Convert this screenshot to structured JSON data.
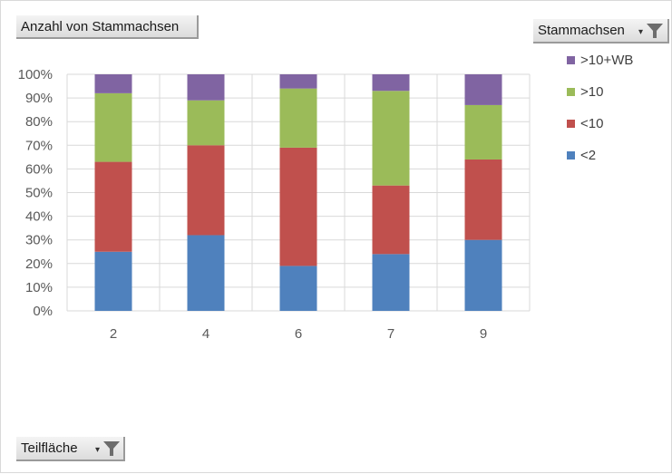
{
  "value_field": {
    "label": "Anzahl von Stammachsen"
  },
  "legend_field": {
    "label": "Stammachsen"
  },
  "axis_field": {
    "label": "Teilfläche"
  },
  "chart_data": {
    "type": "bar",
    "stacked": true,
    "percent": true,
    "categories": [
      "2",
      "4",
      "6",
      "7",
      "9"
    ],
    "series": [
      {
        "name": "<2",
        "color": "#4f81bd",
        "values": [
          25,
          32,
          19,
          24,
          30
        ]
      },
      {
        "name": "<10",
        "color": "#c0504d",
        "values": [
          38,
          38,
          50,
          29,
          34
        ]
      },
      {
        "name": ">10",
        "color": "#9bbb59",
        "values": [
          29,
          19,
          25,
          40,
          23
        ]
      },
      {
        "name": ">10+WB",
        "color": "#8064a2",
        "values": [
          8,
          11,
          6,
          7,
          13
        ]
      }
    ],
    "yticks": [
      "0%",
      "10%",
      "20%",
      "30%",
      "40%",
      "50%",
      "60%",
      "70%",
      "80%",
      "90%",
      "100%"
    ],
    "ylim": [
      0,
      100
    ],
    "grid": true,
    "legend_position": "right"
  }
}
